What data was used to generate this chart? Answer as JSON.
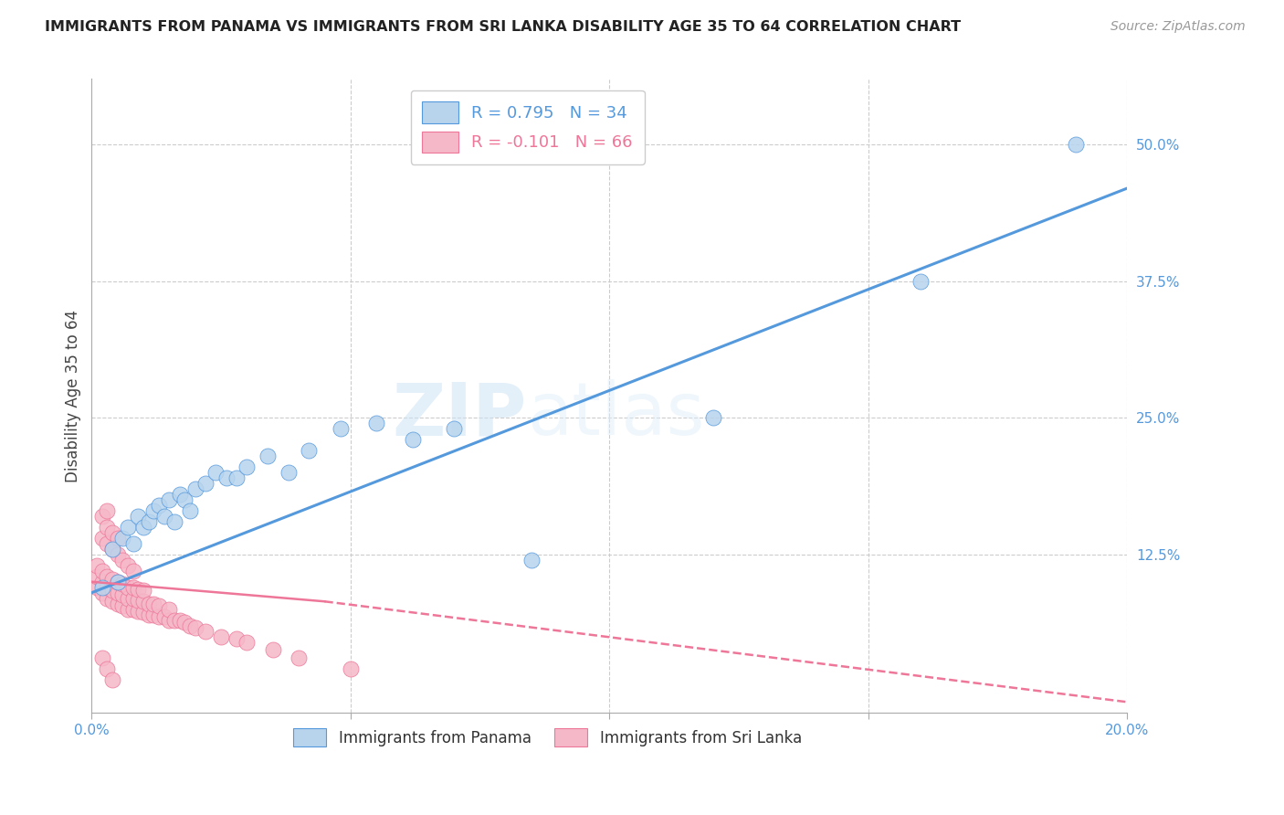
{
  "title": "IMMIGRANTS FROM PANAMA VS IMMIGRANTS FROM SRI LANKA DISABILITY AGE 35 TO 64 CORRELATION CHART",
  "source": "Source: ZipAtlas.com",
  "ylabel": "Disability Age 35 to 64",
  "xlim": [
    0.0,
    0.2
  ],
  "ylim": [
    -0.02,
    0.56
  ],
  "xticks": [
    0.0,
    0.05,
    0.1,
    0.15,
    0.2
  ],
  "xticklabels": [
    "0.0%",
    "",
    "",
    "",
    "20.0%"
  ],
  "yticks_right": [
    0.125,
    0.25,
    0.375,
    0.5
  ],
  "ytick_labels_right": [
    "12.5%",
    "25.0%",
    "37.5%",
    "50.0%"
  ],
  "grid_color": "#cccccc",
  "background_color": "#ffffff",
  "watermark": "ZIPatlas",
  "legend_R_panama": "R = 0.795",
  "legend_N_panama": "N = 34",
  "legend_R_srilanka": "R = -0.101",
  "legend_N_srilanka": "N = 66",
  "panama_color": "#b8d4ed",
  "srilanka_color": "#f5b8c8",
  "panama_line_color": "#5599dd",
  "srilanka_line_color": "#ee7799",
  "panama_scatter_x": [
    0.002,
    0.004,
    0.005,
    0.006,
    0.007,
    0.008,
    0.009,
    0.01,
    0.011,
    0.012,
    0.013,
    0.014,
    0.015,
    0.016,
    0.017,
    0.018,
    0.019,
    0.02,
    0.022,
    0.024,
    0.026,
    0.028,
    0.03,
    0.034,
    0.038,
    0.042,
    0.048,
    0.055,
    0.062,
    0.07,
    0.085,
    0.12,
    0.16,
    0.19
  ],
  "panama_scatter_y": [
    0.095,
    0.13,
    0.1,
    0.14,
    0.15,
    0.135,
    0.16,
    0.15,
    0.155,
    0.165,
    0.17,
    0.16,
    0.175,
    0.155,
    0.18,
    0.175,
    0.165,
    0.185,
    0.19,
    0.2,
    0.195,
    0.195,
    0.205,
    0.215,
    0.2,
    0.22,
    0.24,
    0.245,
    0.23,
    0.24,
    0.12,
    0.25,
    0.375,
    0.5
  ],
  "srilanka_scatter_x": [
    0.001,
    0.001,
    0.001,
    0.002,
    0.002,
    0.002,
    0.002,
    0.002,
    0.003,
    0.003,
    0.003,
    0.003,
    0.003,
    0.003,
    0.004,
    0.004,
    0.004,
    0.004,
    0.004,
    0.005,
    0.005,
    0.005,
    0.005,
    0.005,
    0.006,
    0.006,
    0.006,
    0.006,
    0.007,
    0.007,
    0.007,
    0.007,
    0.008,
    0.008,
    0.008,
    0.008,
    0.009,
    0.009,
    0.009,
    0.01,
    0.01,
    0.01,
    0.011,
    0.011,
    0.012,
    0.012,
    0.013,
    0.013,
    0.014,
    0.015,
    0.015,
    0.016,
    0.017,
    0.018,
    0.019,
    0.02,
    0.022,
    0.025,
    0.028,
    0.03,
    0.035,
    0.04,
    0.05,
    0.002,
    0.003,
    0.004
  ],
  "srilanka_scatter_y": [
    0.095,
    0.105,
    0.115,
    0.09,
    0.1,
    0.11,
    0.14,
    0.16,
    0.085,
    0.095,
    0.105,
    0.135,
    0.15,
    0.165,
    0.082,
    0.092,
    0.102,
    0.13,
    0.145,
    0.08,
    0.09,
    0.1,
    0.125,
    0.14,
    0.078,
    0.088,
    0.098,
    0.12,
    0.075,
    0.085,
    0.095,
    0.115,
    0.075,
    0.085,
    0.095,
    0.11,
    0.073,
    0.083,
    0.093,
    0.072,
    0.082,
    0.092,
    0.07,
    0.08,
    0.07,
    0.08,
    0.068,
    0.078,
    0.068,
    0.065,
    0.075,
    0.065,
    0.065,
    0.063,
    0.06,
    0.058,
    0.055,
    0.05,
    0.048,
    0.045,
    0.038,
    0.03,
    0.02,
    0.03,
    0.02,
    0.01
  ],
  "panama_trend_x0": 0.0,
  "panama_trend_y0": 0.09,
  "panama_trend_x1": 0.2,
  "panama_trend_y1": 0.46,
  "srilanka_trend_solid_x0": 0.0,
  "srilanka_trend_solid_y0": 0.1,
  "srilanka_trend_solid_x1": 0.045,
  "srilanka_trend_solid_y1": 0.082,
  "srilanka_trend_dash_x0": 0.045,
  "srilanka_trend_dash_y0": 0.082,
  "srilanka_trend_dash_x1": 0.2,
  "srilanka_trend_dash_y1": -0.01
}
